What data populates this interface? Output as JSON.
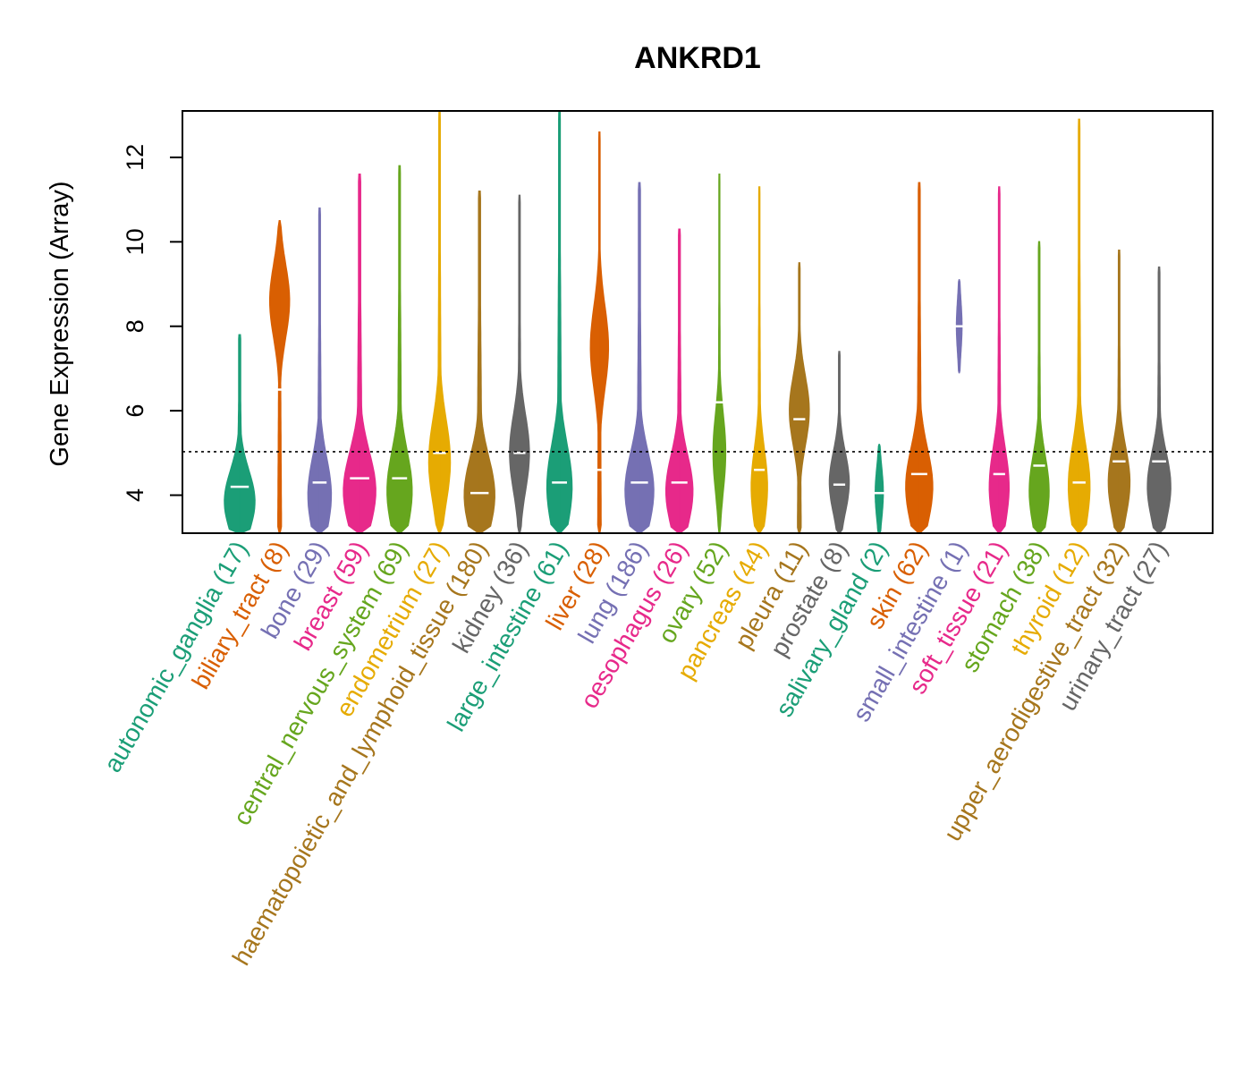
{
  "chart_data": {
    "type": "violin",
    "title": "ANKRD1",
    "ylabel": "Gene Expression (Array)",
    "xlabel": "",
    "ylim": [
      3.1,
      13.1
    ],
    "yticks": [
      4,
      6,
      8,
      10,
      12
    ],
    "reference_line": 5.03,
    "grid": false,
    "categories": [
      {
        "label": "autonomic_ganglia (17)",
        "color": "#1B9E77",
        "min": 3.1,
        "max": 7.8,
        "median": 4.2,
        "mode": 3.85,
        "width": 0.85
      },
      {
        "label": "biliary_tract (8)",
        "color": "#D95F02",
        "min": 3.1,
        "max": 10.5,
        "median": 6.5,
        "mode": 8.6,
        "width": 0.55
      },
      {
        "label": "bone (29)",
        "color": "#7570B3",
        "min": 3.1,
        "max": 10.8,
        "median": 4.3,
        "mode": 4.0,
        "width": 0.65
      },
      {
        "label": "breast (59)",
        "color": "#E7298A",
        "min": 3.1,
        "max": 11.6,
        "median": 4.4,
        "mode": 4.1,
        "width": 0.9
      },
      {
        "label": "central_nervous_system (69)",
        "color": "#66A61E",
        "min": 3.1,
        "max": 11.8,
        "median": 4.4,
        "mode": 4.1,
        "width": 0.7
      },
      {
        "label": "endometrium (27)",
        "color": "#E6AB02",
        "min": 3.1,
        "max": 13.1,
        "median": 5.0,
        "mode": 4.8,
        "width": 0.6
      },
      {
        "label": "haematopoietic_and_lymphoid_tissue (180)",
        "color": "#A6761D",
        "min": 3.1,
        "max": 11.2,
        "median": 4.05,
        "mode": 4.0,
        "width": 0.85
      },
      {
        "label": "kidney (36)",
        "color": "#666666",
        "min": 3.1,
        "max": 11.1,
        "median": 5.0,
        "mode": 5.0,
        "width": 0.55
      },
      {
        "label": "large_intestine (61)",
        "color": "#1B9E77",
        "min": 3.1,
        "max": 13.1,
        "median": 4.3,
        "mode": 4.2,
        "width": 0.7
      },
      {
        "label": "liver (28)",
        "color": "#D95F02",
        "min": 3.1,
        "max": 12.6,
        "median": 4.6,
        "mode": 7.5,
        "width": 0.5
      },
      {
        "label": "lung (186)",
        "color": "#7570B3",
        "min": 3.1,
        "max": 11.4,
        "median": 4.3,
        "mode": 4.1,
        "width": 0.8
      },
      {
        "label": "oesophagus (26)",
        "color": "#E7298A",
        "min": 3.1,
        "max": 10.3,
        "median": 4.3,
        "mode": 4.1,
        "width": 0.75
      },
      {
        "label": "ovary (52)",
        "color": "#66A61E",
        "min": 3.1,
        "max": 11.6,
        "median": 6.2,
        "mode": 5.0,
        "width": 0.35
      },
      {
        "label": "pancreas (44)",
        "color": "#E6AB02",
        "min": 3.1,
        "max": 11.3,
        "median": 4.6,
        "mode": 4.2,
        "width": 0.45
      },
      {
        "label": "pleura (11)",
        "color": "#A6761D",
        "min": 3.1,
        "max": 9.5,
        "median": 5.8,
        "mode": 6.0,
        "width": 0.55
      },
      {
        "label": "prostate (8)",
        "color": "#666666",
        "min": 3.1,
        "max": 7.4,
        "median": 4.25,
        "mode": 4.3,
        "width": 0.55
      },
      {
        "label": "salivary_gland (2)",
        "color": "#1B9E77",
        "min": 3.1,
        "max": 5.2,
        "median": 4.05,
        "mode": 4.05,
        "width": 0.22
      },
      {
        "label": "skin (62)",
        "color": "#D95F02",
        "min": 3.1,
        "max": 11.4,
        "median": 4.5,
        "mode": 4.2,
        "width": 0.75
      },
      {
        "label": "small_intestine (1)",
        "color": "#7570B3",
        "min": 6.9,
        "max": 9.1,
        "median": 8.0,
        "mode": 8.0,
        "width": 0.15
      },
      {
        "label": "soft_tissue (21)",
        "color": "#E7298A",
        "min": 3.1,
        "max": 11.3,
        "median": 4.5,
        "mode": 4.2,
        "width": 0.55
      },
      {
        "label": "stomach (38)",
        "color": "#66A61E",
        "min": 3.1,
        "max": 10.0,
        "median": 4.7,
        "mode": 4.1,
        "width": 0.55
      },
      {
        "label": "thyroid (12)",
        "color": "#E6AB02",
        "min": 3.1,
        "max": 12.9,
        "median": 4.3,
        "mode": 4.2,
        "width": 0.6
      },
      {
        "label": "upper_aerodigestive_tract (32)",
        "color": "#A6761D",
        "min": 3.1,
        "max": 9.8,
        "median": 4.8,
        "mode": 4.3,
        "width": 0.6
      },
      {
        "label": "urinary_tract (27)",
        "color": "#666666",
        "min": 3.1,
        "max": 9.4,
        "median": 4.8,
        "mode": 4.2,
        "width": 0.65
      }
    ]
  }
}
